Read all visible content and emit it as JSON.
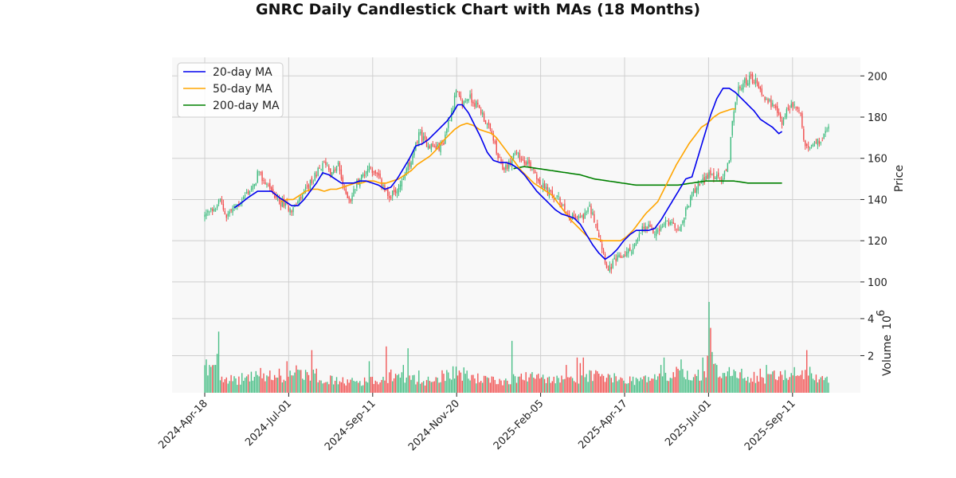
{
  "chart_data": {
    "type": "candlestick",
    "title": "GNRC Daily Candlestick Chart with MAs (18 Months)",
    "xlabel": "",
    "ylabel": "Price",
    "volume_label": "Volume",
    "volume_exponent_label": "10",
    "volume_exponent_power": "6",
    "x_ticks": [
      "2024-Apr-18",
      "2024-Jul-01",
      "2024-Sep-11",
      "2024-Nov-20",
      "2025-Feb-05",
      "2025-Apr-17",
      "2025-Jul-01",
      "2025-Sep-11"
    ],
    "price_ticks": [
      100,
      120,
      140,
      160,
      180,
      200
    ],
    "volume_ticks": [
      2,
      4
    ],
    "price_ylim": [
      93,
      209
    ],
    "volume_ylim": [
      0,
      5.2
    ],
    "legend_position": "upper-left",
    "grid": true,
    "colors": {
      "up": "#3dbb7e",
      "down": "#f04a4a",
      "ma20": "#0000ee",
      "ma50": "#ffa500",
      "ma200": "#008000",
      "panel_bg": "#f8f8f8",
      "grid": "#cfcfcf"
    },
    "price_anchors": [
      [
        0,
        132
      ],
      [
        5,
        135
      ],
      [
        10,
        139
      ],
      [
        14,
        132
      ],
      [
        16,
        134
      ],
      [
        22,
        138
      ],
      [
        28,
        144
      ],
      [
        32,
        146
      ],
      [
        34,
        153
      ],
      [
        38,
        149
      ],
      [
        42,
        146
      ],
      [
        46,
        140
      ],
      [
        52,
        137
      ],
      [
        56,
        135
      ],
      [
        60,
        138
      ],
      [
        64,
        143
      ],
      [
        68,
        148
      ],
      [
        72,
        153
      ],
      [
        78,
        158
      ],
      [
        82,
        152
      ],
      [
        86,
        157
      ],
      [
        90,
        144
      ],
      [
        94,
        140
      ],
      [
        98,
        148
      ],
      [
        102,
        152
      ],
      [
        106,
        156
      ],
      [
        110,
        152
      ],
      [
        114,
        148
      ],
      [
        118,
        141
      ],
      [
        122,
        143
      ],
      [
        126,
        147
      ],
      [
        130,
        155
      ],
      [
        134,
        160
      ],
      [
        138,
        172
      ],
      [
        142,
        168
      ],
      [
        146,
        166
      ],
      [
        150,
        165
      ],
      [
        154,
        168
      ],
      [
        156,
        175
      ],
      [
        159,
        183
      ],
      [
        162,
        192
      ],
      [
        166,
        186
      ],
      [
        170,
        190
      ],
      [
        174,
        187
      ],
      [
        178,
        183
      ],
      [
        182,
        176
      ],
      [
        186,
        170
      ],
      [
        188,
        162
      ],
      [
        192,
        155
      ],
      [
        196,
        157
      ],
      [
        200,
        162
      ],
      [
        204,
        160
      ],
      [
        208,
        158
      ],
      [
        212,
        155
      ],
      [
        216,
        148
      ],
      [
        222,
        143
      ],
      [
        228,
        140
      ],
      [
        234,
        134
      ],
      [
        240,
        130
      ],
      [
        244,
        132
      ],
      [
        248,
        136
      ],
      [
        252,
        129
      ],
      [
        256,
        117
      ],
      [
        260,
        105
      ],
      [
        264,
        110
      ],
      [
        268,
        112
      ],
      [
        272,
        114
      ],
      [
        278,
        118
      ],
      [
        282,
        126
      ],
      [
        286,
        126
      ],
      [
        290,
        124
      ],
      [
        294,
        126
      ],
      [
        298,
        129
      ],
      [
        302,
        127
      ],
      [
        306,
        126
      ],
      [
        310,
        134
      ],
      [
        314,
        142
      ],
      [
        318,
        148
      ],
      [
        322,
        150
      ],
      [
        326,
        152
      ],
      [
        330,
        151
      ],
      [
        334,
        150
      ],
      [
        338,
        158
      ],
      [
        340,
        180
      ],
      [
        344,
        193
      ],
      [
        348,
        197
      ],
      [
        352,
        199
      ],
      [
        356,
        197
      ],
      [
        360,
        190
      ],
      [
        364,
        187
      ],
      [
        368,
        183
      ],
      [
        372,
        178
      ],
      [
        376,
        184
      ],
      [
        380,
        186
      ],
      [
        384,
        182
      ],
      [
        386,
        168
      ],
      [
        390,
        166
      ],
      [
        394,
        167
      ],
      [
        398,
        169
      ],
      [
        402,
        176
      ]
    ],
    "ma20_anchors": [
      [
        19,
        136
      ],
      [
        23,
        138
      ],
      [
        28,
        141
      ],
      [
        34,
        144
      ],
      [
        38,
        144
      ],
      [
        43,
        144
      ],
      [
        48,
        141
      ],
      [
        52,
        139
      ],
      [
        56,
        137
      ],
      [
        60,
        137
      ],
      [
        64,
        140
      ],
      [
        68,
        144
      ],
      [
        72,
        148
      ],
      [
        76,
        153
      ],
      [
        80,
        152
      ],
      [
        84,
        150
      ],
      [
        88,
        148
      ],
      [
        92,
        148
      ],
      [
        96,
        148
      ],
      [
        100,
        149
      ],
      [
        104,
        149
      ],
      [
        108,
        148
      ],
      [
        112,
        147
      ],
      [
        116,
        145
      ],
      [
        120,
        146
      ],
      [
        124,
        150
      ],
      [
        128,
        155
      ],
      [
        132,
        160
      ],
      [
        136,
        166
      ],
      [
        140,
        167
      ],
      [
        144,
        169
      ],
      [
        148,
        172
      ],
      [
        152,
        175
      ],
      [
        156,
        178
      ],
      [
        160,
        182
      ],
      [
        163,
        186
      ],
      [
        166,
        186
      ],
      [
        170,
        182
      ],
      [
        174,
        176
      ],
      [
        178,
        170
      ],
      [
        182,
        163
      ],
      [
        186,
        159
      ],
      [
        190,
        158
      ],
      [
        194,
        158
      ],
      [
        198,
        157
      ],
      [
        202,
        155
      ],
      [
        206,
        152
      ],
      [
        210,
        148
      ],
      [
        214,
        144
      ],
      [
        218,
        141
      ],
      [
        222,
        138
      ],
      [
        226,
        135
      ],
      [
        230,
        133
      ],
      [
        234,
        132
      ],
      [
        238,
        131
      ],
      [
        242,
        128
      ],
      [
        246,
        123
      ],
      [
        250,
        118
      ],
      [
        254,
        114
      ],
      [
        258,
        111
      ],
      [
        262,
        113
      ],
      [
        266,
        116
      ],
      [
        270,
        120
      ],
      [
        274,
        123
      ],
      [
        278,
        125
      ],
      [
        282,
        125
      ],
      [
        286,
        125
      ],
      [
        290,
        126
      ],
      [
        294,
        130
      ],
      [
        298,
        135
      ],
      [
        302,
        140
      ],
      [
        306,
        145
      ],
      [
        310,
        150
      ],
      [
        314,
        151
      ],
      [
        318,
        161
      ],
      [
        322,
        171
      ],
      [
        326,
        181
      ],
      [
        330,
        189
      ],
      [
        334,
        194
      ],
      [
        338,
        194
      ],
      [
        342,
        192
      ],
      [
        346,
        189
      ],
      [
        350,
        186
      ],
      [
        354,
        183
      ],
      [
        358,
        179
      ],
      [
        362,
        177
      ],
      [
        366,
        175
      ],
      [
        370,
        172
      ],
      [
        372,
        173
      ]
    ],
    "ma50_anchors": [
      [
        49,
        139
      ],
      [
        53,
        140
      ],
      [
        57,
        140
      ],
      [
        61,
        142
      ],
      [
        65,
        144
      ],
      [
        69,
        145
      ],
      [
        73,
        145
      ],
      [
        77,
        144
      ],
      [
        81,
        145
      ],
      [
        85,
        145
      ],
      [
        89,
        146
      ],
      [
        93,
        147
      ],
      [
        97,
        148
      ],
      [
        101,
        148
      ],
      [
        105,
        149
      ],
      [
        109,
        149
      ],
      [
        113,
        148
      ],
      [
        117,
        148
      ],
      [
        121,
        149
      ],
      [
        125,
        150
      ],
      [
        129,
        152
      ],
      [
        133,
        154
      ],
      [
        137,
        157
      ],
      [
        141,
        159
      ],
      [
        145,
        161
      ],
      [
        149,
        164
      ],
      [
        153,
        168
      ],
      [
        157,
        171
      ],
      [
        161,
        174
      ],
      [
        165,
        176
      ],
      [
        169,
        177
      ],
      [
        173,
        176
      ],
      [
        177,
        174
      ],
      [
        181,
        173
      ],
      [
        185,
        172
      ],
      [
        188,
        170
      ],
      [
        192,
        166
      ],
      [
        196,
        162
      ],
      [
        200,
        158
      ],
      [
        204,
        154
      ],
      [
        208,
        151
      ],
      [
        212,
        148
      ],
      [
        216,
        146
      ],
      [
        220,
        144
      ],
      [
        224,
        142
      ],
      [
        228,
        138
      ],
      [
        232,
        134
      ],
      [
        236,
        130
      ],
      [
        240,
        127
      ],
      [
        244,
        124
      ],
      [
        248,
        121
      ],
      [
        252,
        121
      ],
      [
        256,
        120
      ],
      [
        260,
        120
      ],
      [
        264,
        120
      ],
      [
        268,
        120
      ],
      [
        272,
        122
      ],
      [
        276,
        125
      ],
      [
        280,
        129
      ],
      [
        284,
        133
      ],
      [
        288,
        136
      ],
      [
        292,
        139
      ],
      [
        296,
        145
      ],
      [
        300,
        151
      ],
      [
        304,
        157
      ],
      [
        308,
        162
      ],
      [
        312,
        167
      ],
      [
        316,
        171
      ],
      [
        320,
        175
      ],
      [
        324,
        177
      ],
      [
        328,
        180
      ],
      [
        332,
        182
      ],
      [
        336,
        183
      ],
      [
        340,
        184
      ],
      [
        342,
        184
      ]
    ],
    "ma200_anchors": [
      [
        199,
        155
      ],
      [
        206,
        156
      ],
      [
        215,
        155
      ],
      [
        224,
        154
      ],
      [
        233,
        153
      ],
      [
        242,
        152
      ],
      [
        251,
        150
      ],
      [
        260,
        149
      ],
      [
        269,
        148
      ],
      [
        278,
        147
      ],
      [
        287,
        147
      ],
      [
        296,
        147
      ],
      [
        305,
        147
      ],
      [
        314,
        148
      ],
      [
        323,
        149
      ],
      [
        332,
        149
      ],
      [
        341,
        149
      ],
      [
        350,
        148
      ],
      [
        359,
        148
      ],
      [
        368,
        148
      ],
      [
        372,
        148
      ]
    ],
    "volume_anchors": [
      [
        0,
        1.3
      ],
      [
        10,
        1.0
      ],
      [
        20,
        0.6
      ],
      [
        25,
        0.8
      ],
      [
        35,
        1.0
      ],
      [
        45,
        0.7
      ],
      [
        55,
        0.9
      ],
      [
        60,
        1.1
      ],
      [
        70,
        0.9
      ],
      [
        80,
        0.7
      ],
      [
        90,
        0.6
      ],
      [
        100,
        0.6
      ],
      [
        110,
        0.7
      ],
      [
        120,
        0.9
      ],
      [
        130,
        0.8
      ],
      [
        140,
        0.6
      ],
      [
        150,
        0.8
      ],
      [
        160,
        1.2
      ],
      [
        170,
        0.9
      ],
      [
        180,
        0.7
      ],
      [
        190,
        0.6
      ],
      [
        200,
        0.8
      ],
      [
        210,
        0.9
      ],
      [
        220,
        0.7
      ],
      [
        230,
        0.7
      ],
      [
        240,
        0.8
      ],
      [
        250,
        1.0
      ],
      [
        260,
        0.8
      ],
      [
        270,
        0.7
      ],
      [
        280,
        0.7
      ],
      [
        290,
        0.8
      ],
      [
        300,
        0.9
      ],
      [
        310,
        1.0
      ],
      [
        320,
        0.9
      ],
      [
        330,
        1.2
      ],
      [
        340,
        1.0
      ],
      [
        350,
        0.9
      ],
      [
        360,
        0.8
      ],
      [
        370,
        0.9
      ],
      [
        380,
        1.1
      ],
      [
        390,
        0.8
      ],
      [
        402,
        0.7
      ]
    ],
    "volume_spikes": [
      [
        1,
        1.8
      ],
      [
        3,
        1.5
      ],
      [
        6,
        1.5
      ],
      [
        8,
        2.1
      ],
      [
        9,
        3.3
      ],
      [
        42,
        1.2
      ],
      [
        48,
        1.3
      ],
      [
        53,
        1.7
      ],
      [
        69,
        2.3
      ],
      [
        72,
        1.3
      ],
      [
        106,
        1.7
      ],
      [
        117,
        2.5
      ],
      [
        128,
        1.5
      ],
      [
        131,
        2.4
      ],
      [
        138,
        1.2
      ],
      [
        198,
        2.8
      ],
      [
        233,
        1.5
      ],
      [
        240,
        1.9
      ],
      [
        242,
        1.6
      ],
      [
        244,
        1.9
      ],
      [
        294,
        1.5
      ],
      [
        296,
        1.9
      ],
      [
        304,
        1.4
      ],
      [
        307,
        1.8
      ],
      [
        321,
        1.9
      ],
      [
        324,
        2.0
      ],
      [
        325,
        4.9
      ],
      [
        326,
        3.5
      ],
      [
        327,
        2.2
      ],
      [
        330,
        1.5
      ],
      [
        358,
        1.3
      ],
      [
        362,
        1.5
      ],
      [
        367,
        1.2
      ],
      [
        388,
        2.3
      ],
      [
        390,
        1.4
      ]
    ],
    "n_days": 403
  }
}
